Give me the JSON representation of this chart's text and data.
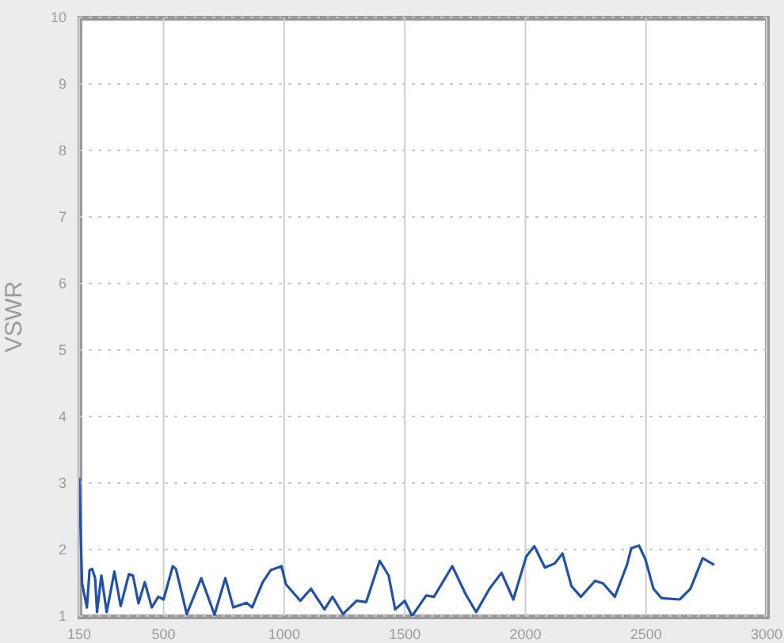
{
  "chart_data": {
    "type": "line",
    "ylabel": "VSWR",
    "x": [
      150,
      162,
      182,
      193,
      204,
      216,
      224,
      242,
      264,
      296,
      322,
      356,
      373,
      396,
      422,
      451,
      478,
      500,
      538,
      551,
      596,
      656,
      711,
      756,
      789,
      844,
      867,
      911,
      944,
      989,
      1007,
      1067,
      1111,
      1167,
      1200,
      1244,
      1300,
      1340,
      1396,
      1433,
      1460,
      1500,
      1530,
      1589,
      1621,
      1697,
      1752,
      1796,
      1851,
      1901,
      1950,
      2004,
      2037,
      2081,
      2121,
      2154,
      2191,
      2230,
      2289,
      2322,
      2371,
      2421,
      2439,
      2471,
      2498,
      2531,
      2564,
      2640,
      2684,
      2735,
      2783
    ],
    "series": [
      {
        "color": "#1f52a8",
        "values": [
          3.08,
          1.49,
          1.13,
          1.69,
          1.71,
          1.57,
          1.06,
          1.61,
          1.06,
          1.67,
          1.15,
          1.63,
          1.61,
          1.19,
          1.51,
          1.13,
          1.29,
          1.25,
          1.75,
          1.71,
          1.03,
          1.57,
          1.02,
          1.57,
          1.13,
          1.2,
          1.13,
          1.51,
          1.69,
          1.75,
          1.48,
          1.23,
          1.41,
          1.1,
          1.29,
          1.03,
          1.23,
          1.21,
          1.83,
          1.61,
          1.1,
          1.23,
          1.0,
          1.31,
          1.29,
          1.75,
          1.33,
          1.06,
          1.41,
          1.65,
          1.25,
          1.9,
          2.05,
          1.73,
          1.79,
          1.94,
          1.45,
          1.29,
          1.53,
          1.49,
          1.29,
          1.77,
          2.02,
          2.06,
          1.85,
          1.41,
          1.27,
          1.25,
          1.41,
          1.87,
          1.77
        ]
      }
    ],
    "xlim": [
      150,
      3000
    ],
    "xticks": [
      150,
      500,
      1000,
      1500,
      2000,
      2500,
      3000
    ],
    "ylim": [
      1,
      10
    ],
    "yticks": [
      1,
      2,
      3,
      4,
      5,
      6,
      7,
      8,
      9,
      10
    ],
    "grid": true,
    "legend": false,
    "marker": "none",
    "line_style": "solid"
  }
}
